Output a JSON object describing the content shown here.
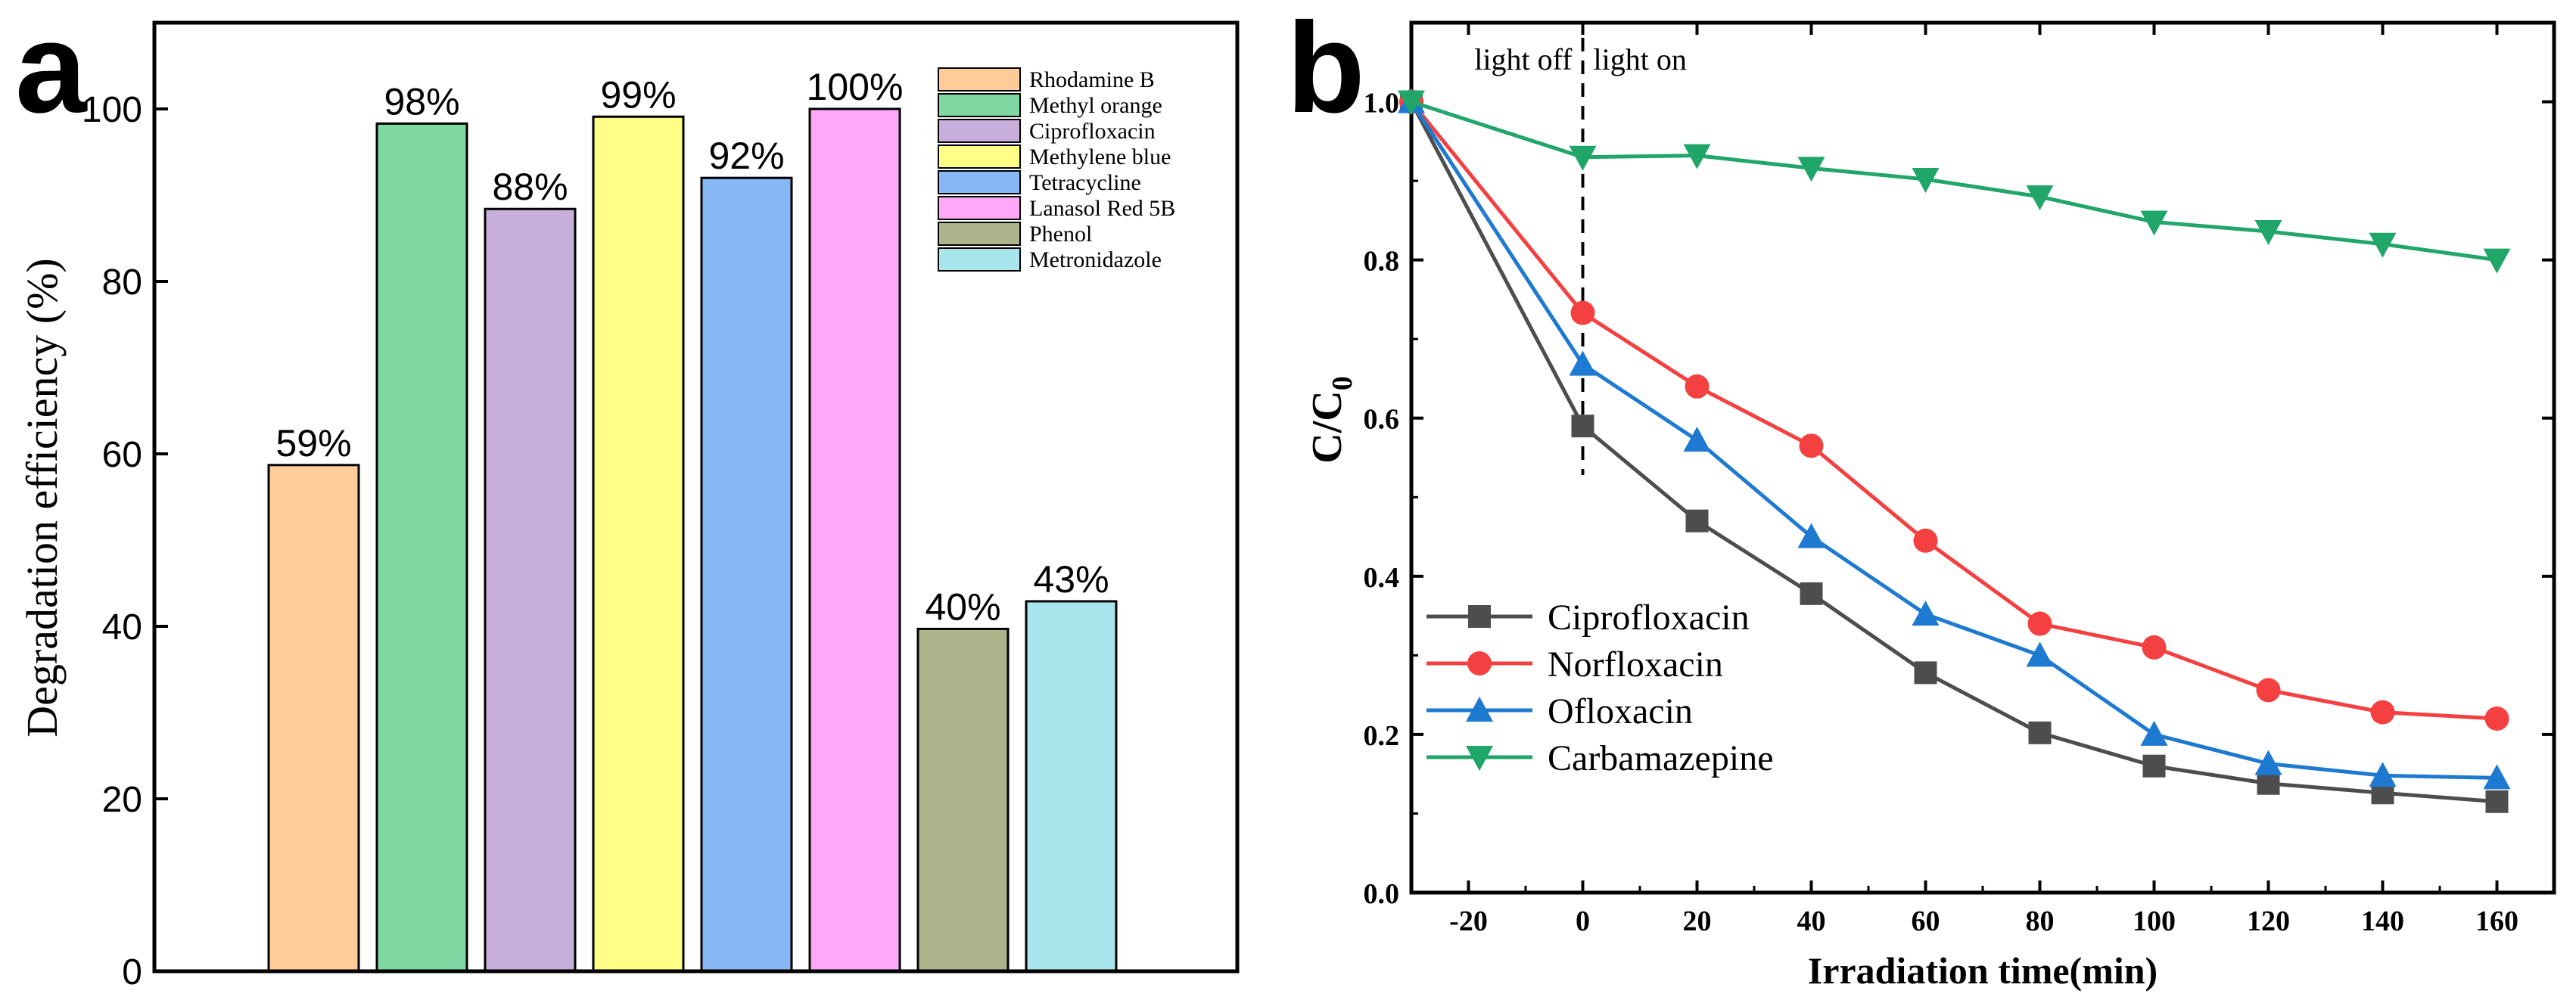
{
  "chart_data": [
    {
      "panel": "a",
      "type": "bar",
      "ylabel": "Degradation efficiency (%)",
      "xlabel": "",
      "ylim": [
        0,
        110
      ],
      "yticks": [
        0,
        20,
        40,
        60,
        80,
        100
      ],
      "legend_position": "top-right",
      "grid": false,
      "categories": [
        "Rhodamine B",
        "Methyl orange",
        "Ciprofloxacin",
        "Methylene blue",
        "Tetracycline",
        "Lanasol Red 5B",
        "Phenol",
        "Metronidazole"
      ],
      "values": [
        58.7,
        98.3,
        88.4,
        99.1,
        92.0,
        100.0,
        39.7,
        42.9
      ],
      "data_labels": [
        "59%",
        "98%",
        "88%",
        "99%",
        "92%",
        "100%",
        "40%",
        "43%"
      ],
      "colors": [
        "#FFCC99",
        "#7FD8A2",
        "#C7AEDB",
        "#FFFF88",
        "#87B7F5",
        "#FFA8F9",
        "#B0B48D",
        "#A9E5EC"
      ]
    },
    {
      "panel": "b",
      "type": "line",
      "xlabel": "Irradiation time(min)",
      "ylabel_main": "C/C",
      "ylabel_sub": "0",
      "xlim": [
        -30,
        170
      ],
      "ylim": [
        0.0,
        1.1
      ],
      "xticks": [
        -20,
        0,
        20,
        40,
        60,
        80,
        100,
        120,
        140,
        160
      ],
      "yticks": [
        0.0,
        0.2,
        0.4,
        0.6,
        0.8,
        1.0
      ],
      "legend_position": "bottom-left",
      "grid": false,
      "annotations": {
        "light_off": "light off",
        "light_on": "light on",
        "divider_x": 0
      },
      "x": [
        -30,
        0,
        20,
        40,
        60,
        80,
        100,
        120,
        140,
        160
      ],
      "series": [
        {
          "name": "Ciprofloxacin",
          "color": "#4D4D4D",
          "marker": "square",
          "values": [
            1.0,
            0.59,
            0.47,
            0.378,
            0.278,
            0.202,
            0.16,
            0.138,
            0.126,
            0.115
          ]
        },
        {
          "name": "Norfloxacin",
          "color": "#F44040",
          "marker": "circle",
          "values": [
            1.0,
            0.733,
            0.64,
            0.565,
            0.445,
            0.34,
            0.31,
            0.256,
            0.228,
            0.22
          ]
        },
        {
          "name": "Ofloxacin",
          "color": "#1E7AD0",
          "marker": "triangle-up",
          "values": [
            1.0,
            0.668,
            0.572,
            0.45,
            0.352,
            0.3,
            0.2,
            0.163,
            0.148,
            0.145
          ]
        },
        {
          "name": "Carbamazepine",
          "color": "#21A66A",
          "marker": "triangle-down",
          "values": [
            1.0,
            0.93,
            0.932,
            0.916,
            0.902,
            0.88,
            0.848,
            0.836,
            0.82,
            0.8
          ]
        }
      ]
    }
  ],
  "panel_labels": {
    "a": "a",
    "b": "b"
  }
}
